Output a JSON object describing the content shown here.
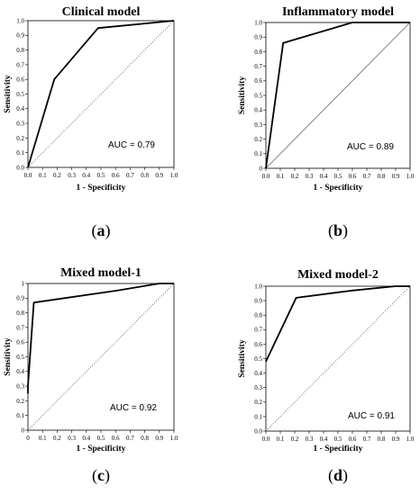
{
  "chart_data": [
    {
      "type": "line",
      "title": "Clinical model",
      "xlabel": "1 - Specificity",
      "ylabel": "Sensitivity",
      "xlim": [
        0,
        1
      ],
      "ylim": [
        0,
        1
      ],
      "x_ticks": [
        "0.0",
        "0.1",
        "0.2",
        "0.3",
        "0.4",
        "0.5",
        "0.6",
        "0.7",
        "0.8",
        "0.9",
        "1.0"
      ],
      "y_ticks": [
        "0.0",
        "0.1",
        "0.2",
        "0.3",
        "0.4",
        "0.5",
        "0.6",
        "0.7",
        "0.8",
        "0.9",
        "1.0"
      ],
      "series": [
        {
          "x": [
            0,
            0.18,
            0.48,
            1.0
          ],
          "y": [
            0,
            0.6,
            0.95,
            1.0
          ]
        }
      ],
      "reference_line": {
        "x": [
          0,
          1
        ],
        "y": [
          0,
          1
        ],
        "style": "dotted"
      },
      "annotation": "AUC = 0.79",
      "panel_label": "a",
      "grid": false
    },
    {
      "type": "line",
      "title": "Inflammatory model",
      "xlabel": "1 - Specificity",
      "ylabel": "Sensitivity",
      "xlim": [
        0,
        1
      ],
      "ylim": [
        0,
        1
      ],
      "x_ticks": [
        "0.0",
        "0.1",
        "0.2",
        "0.3",
        "0.4",
        "0.5",
        "0.6",
        "0.7",
        "0.8",
        "0.9",
        "1.0"
      ],
      "y_ticks": [
        "0",
        "0.1",
        "0.2",
        "0.3",
        "0.4",
        "0.5",
        "0.6",
        "0.7",
        "0.8",
        "0.9",
        "1.0"
      ],
      "series": [
        {
          "x": [
            0,
            0.12,
            0.6,
            1.0
          ],
          "y": [
            0,
            0.86,
            1.0,
            1.0
          ]
        }
      ],
      "reference_line": {
        "x": [
          0,
          1
        ],
        "y": [
          0,
          1
        ],
        "style": "solid"
      },
      "annotation": "AUC = 0.89",
      "panel_label": "b",
      "grid": false
    },
    {
      "type": "line",
      "title": "Mixed model-1",
      "xlabel": "1 - Specificity",
      "ylabel": "Sensitivity",
      "xlim": [
        0,
        1
      ],
      "ylim": [
        0,
        1
      ],
      "x_ticks": [
        "0",
        "0.1",
        "0.2",
        "0.3",
        "0.4",
        "0.5",
        "0.6",
        "0.7",
        "0.8",
        "0.9",
        "1.0"
      ],
      "y_ticks": [
        "0",
        "0.1",
        "0.2",
        "0.3",
        "0.4",
        "0.5",
        "0.6",
        "0.7",
        "0.8",
        "0.9",
        "1"
      ],
      "series": [
        {
          "x": [
            0,
            0.0,
            0.04,
            0.6,
            0.9,
            1.0
          ],
          "y": [
            0.25,
            0.3,
            0.87,
            0.95,
            1.0,
            1.0
          ]
        }
      ],
      "reference_line": {
        "x": [
          0,
          1
        ],
        "y": [
          0,
          1
        ],
        "style": "dotted"
      },
      "annotation": "AUC = 0.92",
      "panel_label": "c",
      "grid": false
    },
    {
      "type": "line",
      "title": "Mixed model-2",
      "xlabel": "1 - Specificity",
      "ylabel": "Sensitivity",
      "xlim": [
        0,
        1
      ],
      "ylim": [
        0,
        1
      ],
      "x_ticks": [
        "0.0",
        "0.1",
        "0.2",
        "0.3",
        "0.4",
        "0.5",
        "0.6",
        "0.7",
        "0.8",
        "0.9",
        "1.0"
      ],
      "y_ticks": [
        "0.0",
        "0.1",
        "0.2",
        "0.3",
        "0.4",
        "0.5",
        "0.6",
        "0.7",
        "0.8",
        "0.9",
        "1.0"
      ],
      "series": [
        {
          "x": [
            0,
            0.21,
            0.6,
            0.9,
            1.0
          ],
          "y": [
            0.48,
            0.92,
            0.97,
            1.0,
            1.0
          ]
        }
      ],
      "reference_line": {
        "x": [
          0,
          1
        ],
        "y": [
          0,
          1
        ],
        "style": "dotted"
      },
      "annotation": "AUC = 0.91",
      "panel_label": "d",
      "grid": false
    }
  ]
}
